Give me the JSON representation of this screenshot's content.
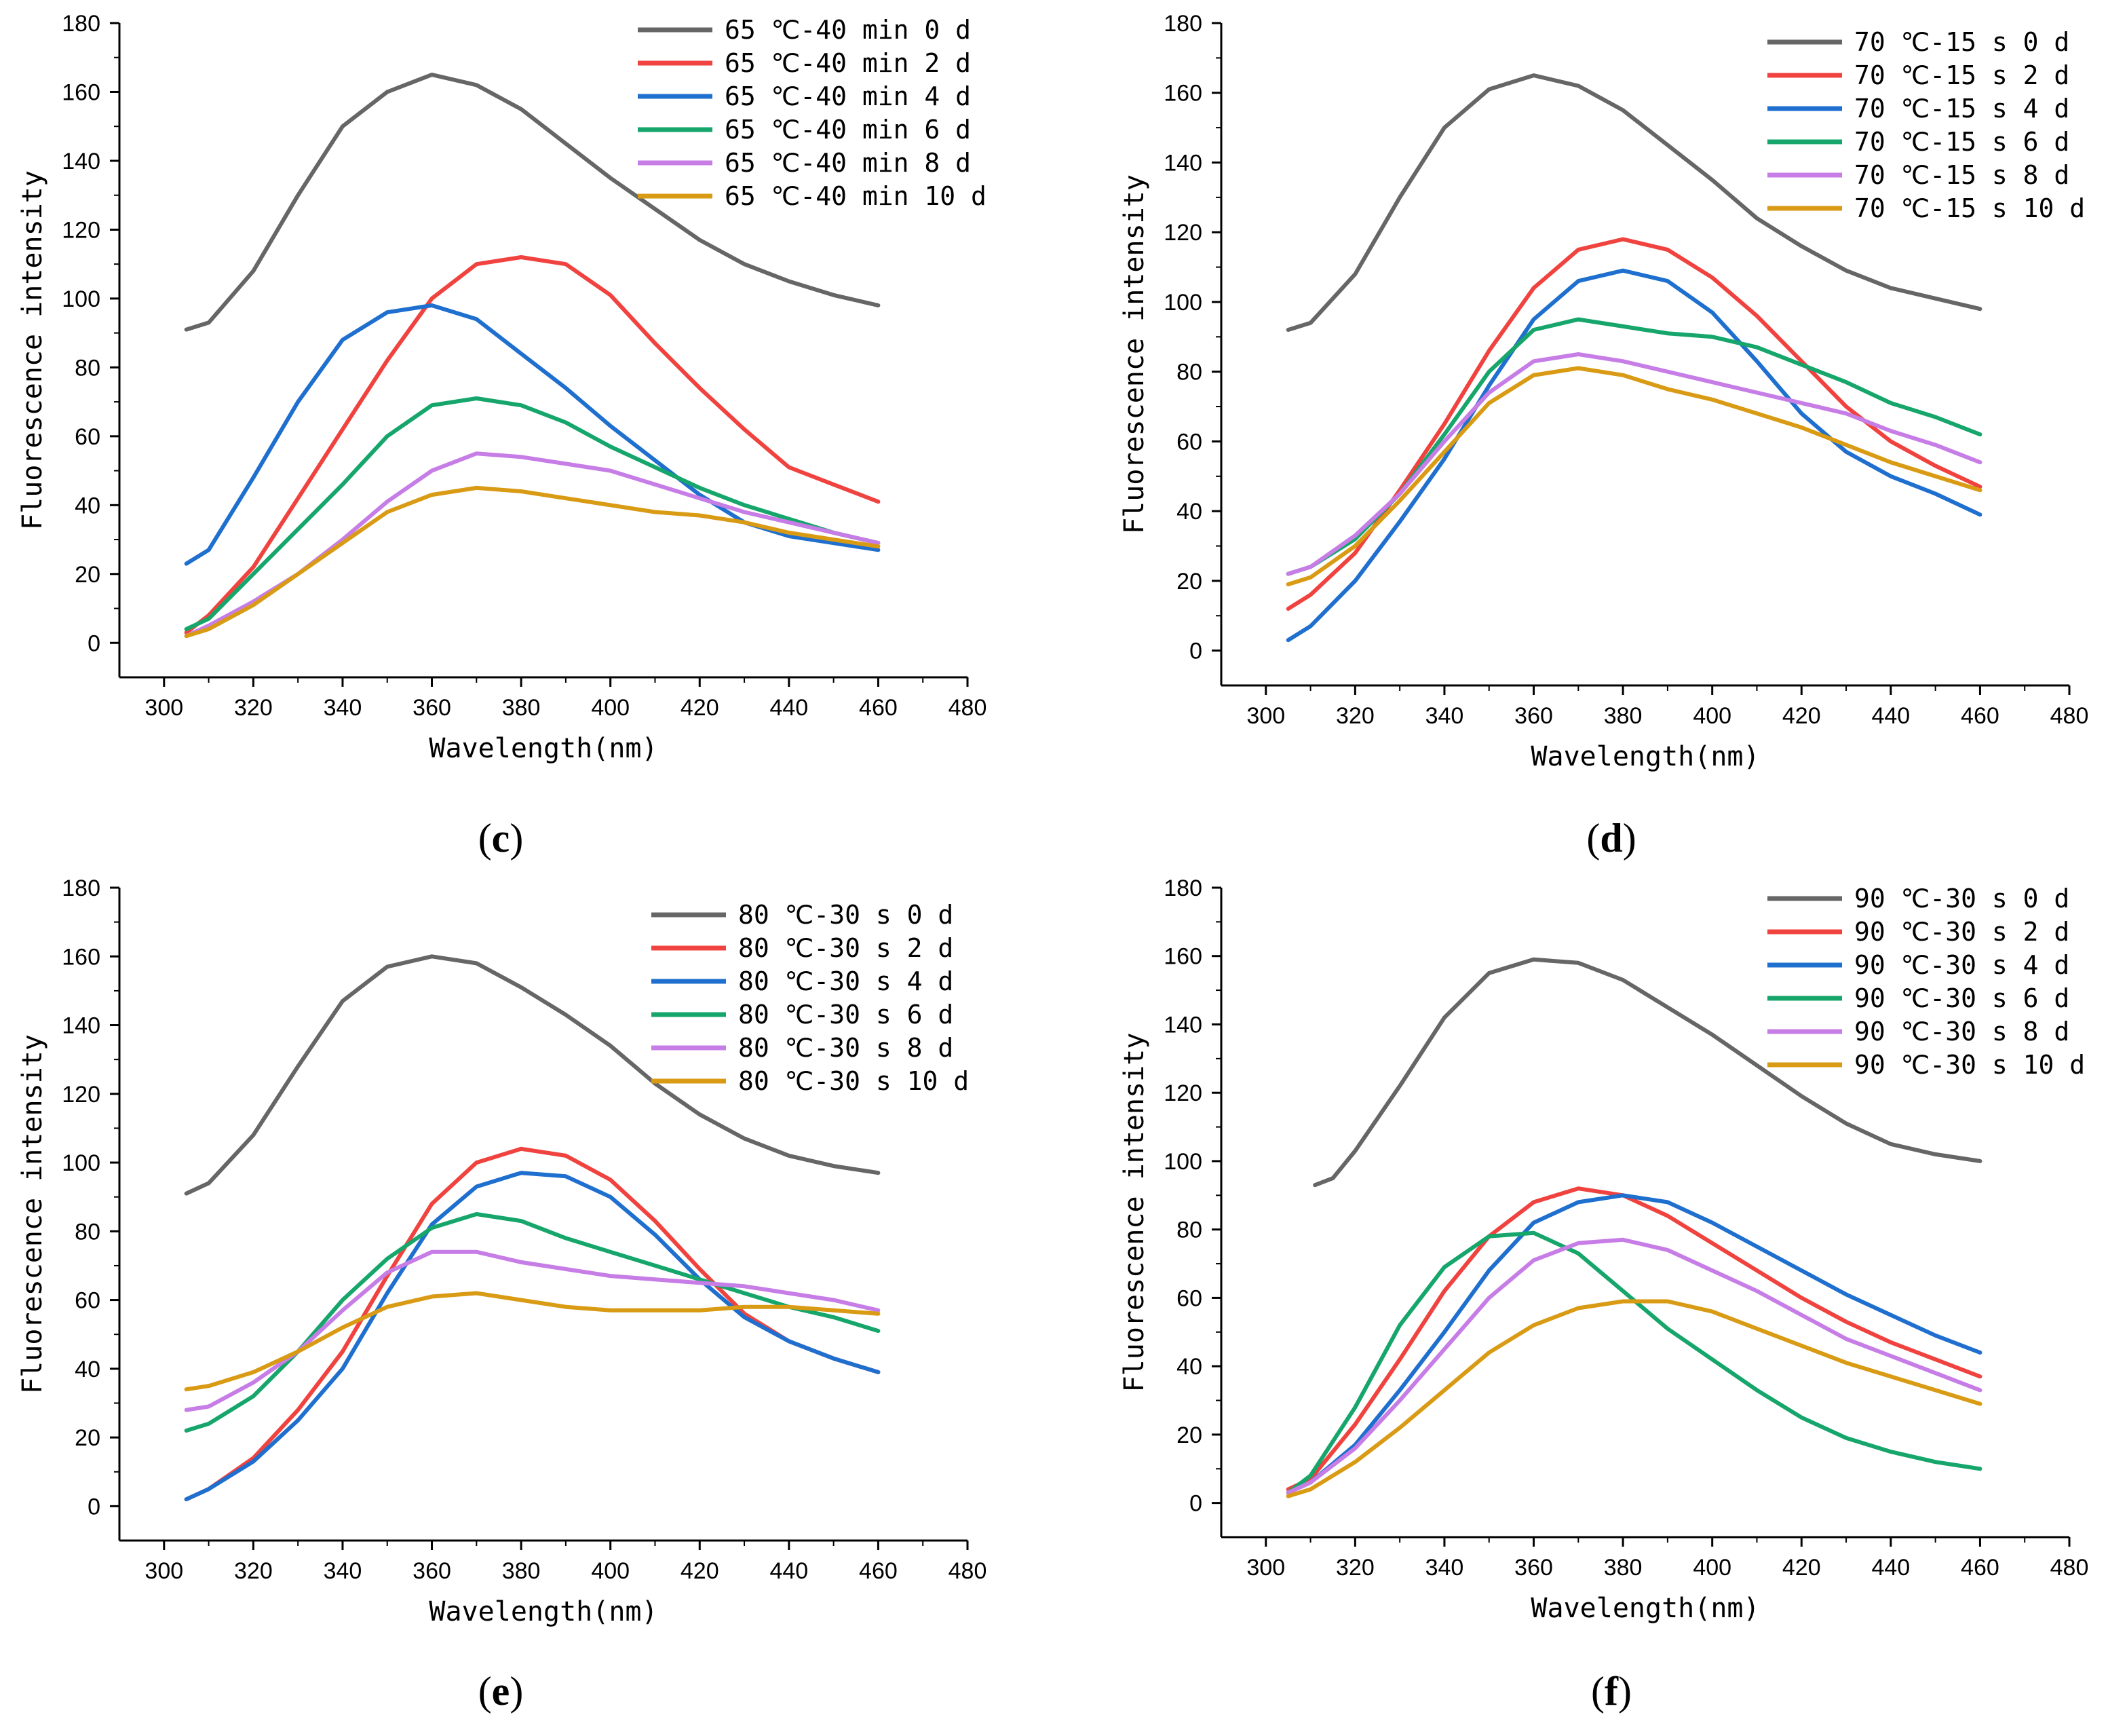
{
  "colors": {
    "0 d": "#666666",
    "2 d": "#f0433f",
    "4 d": "#1f6fcf",
    "6 d": "#16a66b",
    "8 d": "#c77de6",
    "10 d": "#d99a14",
    "axis": "#000000",
    "background": "#ffffff"
  },
  "chart_data": [
    {
      "panel": "c",
      "panel_label": "(c)",
      "label_open": "(",
      "label_letter": "c",
      "label_close": ")",
      "type": "line",
      "xlabel": "Wavelength(nm)",
      "ylabel": "Fluorescence intensity",
      "xlim": [
        290,
        480
      ],
      "ylim": [
        -10,
        180
      ],
      "xticks": [
        300,
        320,
        340,
        360,
        380,
        400,
        420,
        440,
        460,
        480
      ],
      "yticks": [
        0,
        20,
        40,
        60,
        80,
        100,
        120,
        140,
        160,
        180
      ],
      "legend_position": "top-right",
      "series": [
        {
          "name": "65 ℃-40 min 0 d",
          "key": "0 d",
          "x": [
            305,
            310,
            320,
            330,
            340,
            350,
            360,
            370,
            380,
            390,
            400,
            410,
            420,
            430,
            440,
            450,
            460
          ],
          "y": [
            91,
            93,
            108,
            130,
            150,
            160,
            165,
            162,
            155,
            145,
            135,
            126,
            117,
            110,
            105,
            101,
            98
          ]
        },
        {
          "name": "65 ℃-40 min 2 d",
          "key": "2 d",
          "x": [
            305,
            310,
            320,
            330,
            340,
            350,
            360,
            370,
            380,
            390,
            400,
            410,
            420,
            430,
            440,
            450,
            460
          ],
          "y": [
            3,
            8,
            22,
            42,
            62,
            82,
            100,
            110,
            112,
            110,
            101,
            87,
            74,
            62,
            51,
            46,
            41
          ]
        },
        {
          "name": "65 ℃-40 min 4 d",
          "key": "4 d",
          "x": [
            305,
            310,
            320,
            330,
            340,
            350,
            360,
            370,
            380,
            390,
            400,
            410,
            420,
            430,
            440,
            450,
            460
          ],
          "y": [
            23,
            27,
            48,
            70,
            88,
            96,
            98,
            94,
            84,
            74,
            63,
            53,
            43,
            35,
            31,
            29,
            27
          ]
        },
        {
          "name": "65 ℃-40 min 6 d",
          "key": "6 d",
          "x": [
            305,
            310,
            320,
            330,
            340,
            350,
            360,
            370,
            380,
            390,
            400,
            410,
            420,
            430,
            440,
            450,
            460
          ],
          "y": [
            4,
            7,
            20,
            33,
            46,
            60,
            69,
            71,
            69,
            64,
            57,
            51,
            45,
            40,
            36,
            32,
            29
          ]
        },
        {
          "name": "65 ℃-40 min 8 d",
          "key": "8 d",
          "x": [
            305,
            310,
            320,
            330,
            340,
            350,
            360,
            370,
            380,
            390,
            400,
            410,
            420,
            430,
            440,
            450,
            460
          ],
          "y": [
            2,
            5,
            12,
            20,
            30,
            41,
            50,
            55,
            54,
            52,
            50,
            46,
            42,
            38,
            35,
            32,
            29
          ]
        },
        {
          "name": "65 ℃-40 min 10 d",
          "key": "10 d",
          "x": [
            305,
            310,
            320,
            330,
            340,
            350,
            360,
            370,
            380,
            390,
            400,
            410,
            420,
            430,
            440,
            450,
            460
          ],
          "y": [
            2,
            4,
            11,
            20,
            29,
            38,
            43,
            45,
            44,
            42,
            40,
            38,
            37,
            35,
            32,
            30,
            28
          ]
        }
      ]
    },
    {
      "panel": "d",
      "panel_label": "(d)",
      "label_open": "(",
      "label_letter": "d",
      "label_close": ")",
      "type": "line",
      "xlabel": "Wavelength(nm)",
      "ylabel": "Fluorescence intensity",
      "xlim": [
        290,
        480
      ],
      "ylim": [
        -10,
        180
      ],
      "xticks": [
        300,
        320,
        340,
        360,
        380,
        400,
        420,
        440,
        460,
        480
      ],
      "yticks": [
        0,
        20,
        40,
        60,
        80,
        100,
        120,
        140,
        160,
        180
      ],
      "legend_position": "top-right",
      "series": [
        {
          "name": "70 ℃-15 s 0 d",
          "key": "0 d",
          "x": [
            305,
            310,
            320,
            330,
            340,
            350,
            360,
            370,
            380,
            390,
            400,
            410,
            420,
            430,
            440,
            450,
            460
          ],
          "y": [
            92,
            94,
            108,
            130,
            150,
            161,
            165,
            162,
            155,
            145,
            135,
            124,
            116,
            109,
            104,
            101,
            98
          ]
        },
        {
          "name": "70 ℃-15 s 2 d",
          "key": "2 d",
          "x": [
            305,
            310,
            320,
            330,
            340,
            350,
            360,
            370,
            380,
            390,
            400,
            410,
            420,
            430,
            440,
            450,
            460
          ],
          "y": [
            12,
            16,
            28,
            46,
            65,
            86,
            104,
            115,
            118,
            115,
            107,
            96,
            83,
            70,
            60,
            53,
            47
          ]
        },
        {
          "name": "70 ℃-15 s 4 d",
          "key": "4 d",
          "x": [
            305,
            310,
            320,
            330,
            340,
            350,
            360,
            370,
            380,
            390,
            400,
            410,
            420,
            430,
            440,
            450,
            460
          ],
          "y": [
            3,
            7,
            20,
            37,
            55,
            76,
            95,
            106,
            109,
            106,
            97,
            83,
            68,
            57,
            50,
            45,
            39
          ]
        },
        {
          "name": "70 ℃-15 s 6 d",
          "key": "6 d",
          "x": [
            305,
            310,
            320,
            330,
            340,
            350,
            360,
            370,
            380,
            390,
            400,
            410,
            420,
            430,
            440,
            450,
            460
          ],
          "y": [
            22,
            24,
            32,
            45,
            62,
            80,
            92,
            95,
            93,
            91,
            90,
            87,
            82,
            77,
            71,
            67,
            62
          ]
        },
        {
          "name": "70 ℃-15 s 8 d",
          "key": "8 d",
          "x": [
            305,
            310,
            320,
            330,
            340,
            350,
            360,
            370,
            380,
            390,
            400,
            410,
            420,
            430,
            440,
            450,
            460
          ],
          "y": [
            22,
            24,
            33,
            45,
            60,
            74,
            83,
            85,
            83,
            80,
            77,
            74,
            71,
            68,
            63,
            59,
            54
          ]
        },
        {
          "name": "70 ℃-15 s 10 d",
          "key": "10 d",
          "x": [
            305,
            310,
            320,
            330,
            340,
            350,
            360,
            370,
            380,
            390,
            400,
            410,
            420,
            430,
            440,
            450,
            460
          ],
          "y": [
            19,
            21,
            30,
            43,
            57,
            71,
            79,
            81,
            79,
            75,
            72,
            68,
            64,
            59,
            54,
            50,
            46
          ]
        }
      ]
    },
    {
      "panel": "e",
      "panel_label": "(e)",
      "label_open": "(",
      "label_letter": "e",
      "label_close": ")",
      "type": "line",
      "xlabel": "Wavelength(nm)",
      "ylabel": "Fluorescence intensity",
      "xlim": [
        290,
        480
      ],
      "ylim": [
        -10,
        180
      ],
      "xticks": [
        300,
        320,
        340,
        360,
        380,
        400,
        420,
        440,
        460,
        480
      ],
      "yticks": [
        0,
        20,
        40,
        60,
        80,
        100,
        120,
        140,
        160,
        180
      ],
      "legend_position": "top-right",
      "series": [
        {
          "name": "80 ℃-30 s 0 d",
          "key": "0 d",
          "x": [
            305,
            310,
            320,
            330,
            340,
            350,
            360,
            370,
            380,
            390,
            400,
            410,
            420,
            430,
            440,
            450,
            460
          ],
          "y": [
            91,
            94,
            108,
            128,
            147,
            157,
            160,
            158,
            151,
            143,
            134,
            123,
            114,
            107,
            102,
            99,
            97
          ]
        },
        {
          "name": "80 ℃-30 s 2 d",
          "key": "2 d",
          "x": [
            305,
            310,
            320,
            330,
            340,
            350,
            360,
            370,
            380,
            390,
            400,
            410,
            420,
            430,
            440,
            450,
            460
          ],
          "y": [
            2,
            5,
            14,
            28,
            45,
            67,
            88,
            100,
            104,
            102,
            95,
            83,
            69,
            56,
            48,
            43,
            39
          ]
        },
        {
          "name": "80 ℃-30 s 4 d",
          "key": "4 d",
          "x": [
            305,
            310,
            320,
            330,
            340,
            350,
            360,
            370,
            380,
            390,
            400,
            410,
            420,
            430,
            440,
            450,
            460
          ],
          "y": [
            2,
            5,
            13,
            25,
            40,
            62,
            82,
            93,
            97,
            96,
            90,
            79,
            66,
            55,
            48,
            43,
            39
          ]
        },
        {
          "name": "80 ℃-30 s 6 d",
          "key": "6 d",
          "x": [
            305,
            310,
            320,
            330,
            340,
            350,
            360,
            370,
            380,
            390,
            400,
            410,
            420,
            430,
            440,
            450,
            460
          ],
          "y": [
            22,
            24,
            32,
            45,
            60,
            72,
            81,
            85,
            83,
            78,
            74,
            70,
            66,
            62,
            58,
            55,
            51
          ]
        },
        {
          "name": "80 ℃-30 s 8 d",
          "key": "8 d",
          "x": [
            305,
            310,
            320,
            330,
            340,
            350,
            360,
            370,
            380,
            390,
            400,
            410,
            420,
            430,
            440,
            450,
            460
          ],
          "y": [
            28,
            29,
            36,
            45,
            57,
            68,
            74,
            74,
            71,
            69,
            67,
            66,
            65,
            64,
            62,
            60,
            57
          ]
        },
        {
          "name": "80 ℃-30 s 10 d",
          "key": "10 d",
          "x": [
            305,
            310,
            320,
            330,
            340,
            350,
            360,
            370,
            380,
            390,
            400,
            410,
            420,
            430,
            440,
            450,
            460
          ],
          "y": [
            34,
            35,
            39,
            45,
            52,
            58,
            61,
            62,
            60,
            58,
            57,
            57,
            57,
            58,
            58,
            57,
            56
          ]
        }
      ]
    },
    {
      "panel": "f",
      "panel_label": "(f)",
      "label_open": "(",
      "label_letter": "f",
      "label_close": ")",
      "type": "line",
      "xlabel": "Wavelength(nm)",
      "ylabel": "Fluorescence intensity",
      "xlim": [
        290,
        480
      ],
      "ylim": [
        -10,
        180
      ],
      "xticks": [
        300,
        320,
        340,
        360,
        380,
        400,
        420,
        440,
        460,
        480
      ],
      "yticks": [
        0,
        20,
        40,
        60,
        80,
        100,
        120,
        140,
        160,
        180
      ],
      "legend_position": "top-right",
      "series": [
        {
          "name": "90 ℃-30 s 0 d",
          "key": "0 d",
          "x": [
            311,
            315,
            320,
            330,
            340,
            350,
            360,
            370,
            380,
            390,
            400,
            410,
            420,
            430,
            440,
            450,
            460
          ],
          "y": [
            93,
            95,
            103,
            122,
            142,
            155,
            159,
            158,
            153,
            145,
            137,
            128,
            119,
            111,
            105,
            102,
            100
          ]
        },
        {
          "name": "90 ℃-30 s 2 d",
          "key": "2 d",
          "x": [
            305,
            310,
            320,
            330,
            340,
            350,
            360,
            370,
            380,
            390,
            400,
            410,
            420,
            430,
            440,
            450,
            460
          ],
          "y": [
            4,
            7,
            23,
            42,
            62,
            78,
            88,
            92,
            90,
            84,
            76,
            68,
            60,
            53,
            47,
            42,
            37
          ]
        },
        {
          "name": "90 ℃-30 s 4 d",
          "key": "4 d",
          "x": [
            305,
            310,
            320,
            330,
            340,
            350,
            360,
            370,
            380,
            390,
            400,
            410,
            420,
            430,
            440,
            450,
            460
          ],
          "y": [
            3,
            6,
            17,
            33,
            50,
            68,
            82,
            88,
            90,
            88,
            82,
            75,
            68,
            61,
            55,
            49,
            44
          ]
        },
        {
          "name": "90 ℃-30 s 6 d",
          "key": "6 d",
          "x": [
            305,
            310,
            320,
            330,
            340,
            350,
            360,
            370,
            380,
            390,
            400,
            410,
            420,
            430,
            440,
            450,
            460
          ],
          "y": [
            3,
            8,
            28,
            52,
            69,
            78,
            79,
            73,
            62,
            51,
            42,
            33,
            25,
            19,
            15,
            12,
            10
          ]
        },
        {
          "name": "90 ℃-30 s 8 d",
          "key": "8 d",
          "x": [
            305,
            310,
            320,
            330,
            340,
            350,
            360,
            370,
            380,
            390,
            400,
            410,
            420,
            430,
            440,
            450,
            460
          ],
          "y": [
            3,
            6,
            16,
            30,
            45,
            60,
            71,
            76,
            77,
            74,
            68,
            62,
            55,
            48,
            43,
            38,
            33
          ]
        },
        {
          "name": "90 ℃-30 s 10 d",
          "key": "10 d",
          "x": [
            305,
            310,
            320,
            330,
            340,
            350,
            360,
            370,
            380,
            390,
            400,
            410,
            420,
            430,
            440,
            450,
            460
          ],
          "y": [
            2,
            4,
            12,
            22,
            33,
            44,
            52,
            57,
            59,
            59,
            56,
            51,
            46,
            41,
            37,
            33,
            29
          ]
        }
      ]
    }
  ]
}
